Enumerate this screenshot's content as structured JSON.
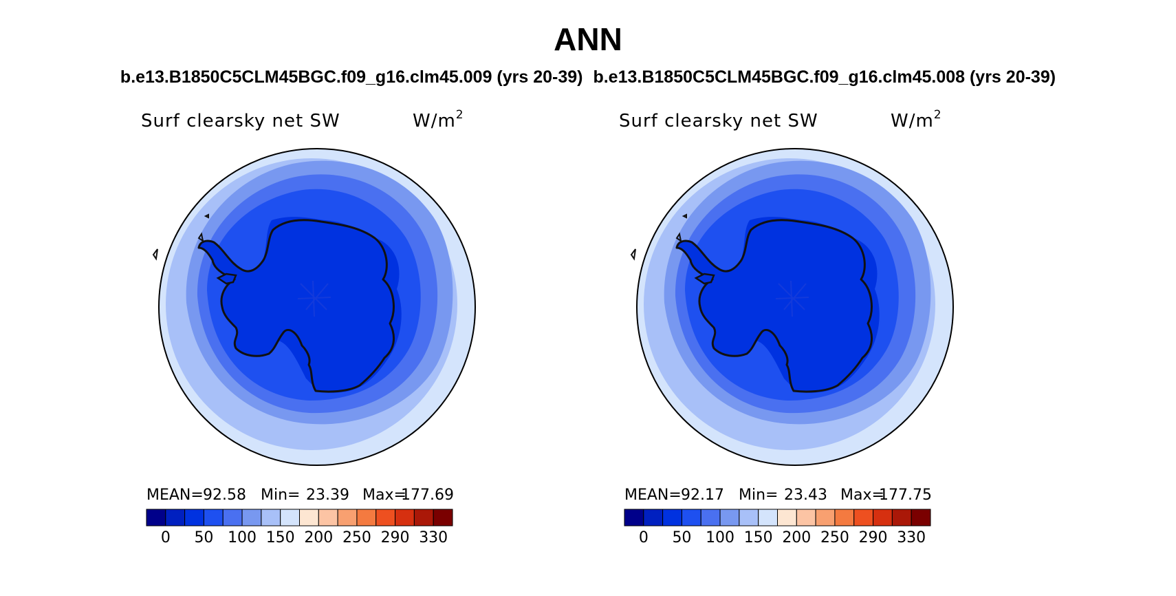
{
  "figure": {
    "title": "ANN",
    "subtitle_left": "b.e13.B1850C5CLM45BGC.f09_g16.clm45.009 (yrs 20-39)",
    "subtitle_right": "b.e13.B1850C5CLM45BGC.f09_g16.clm45.008 (yrs 20-39)"
  },
  "colorbar": {
    "colors": [
      "#00008a",
      "#0020c0",
      "#0032e0",
      "#1e50f0",
      "#4a70f0",
      "#7898f0",
      "#a8c0f8",
      "#d4e4fc",
      "#fde6d2",
      "#fcc4a4",
      "#f8a070",
      "#f47a40",
      "#ee5020",
      "#d63010",
      "#aa1808",
      "#7a0000"
    ],
    "tick_labels": [
      "0",
      "50",
      "100",
      "150",
      "200",
      "250",
      "290",
      "330"
    ]
  },
  "panels": [
    {
      "variable": "Surf clearsky net SW",
      "units_base": "W/m",
      "units_exp": "2",
      "mean_label": "MEAN=",
      "mean": "92.58",
      "min_label": "Min=",
      "min": "23.39",
      "max_label": "Max=",
      "max": "177.69"
    },
    {
      "variable": "Surf clearsky net SW",
      "units_base": "W/m",
      "units_exp": "2",
      "mean_label": "MEAN=",
      "mean": "92.17",
      "min_label": "Min=",
      "min": "23.43",
      "max_label": "Max=",
      "max": "177.75"
    }
  ]
}
